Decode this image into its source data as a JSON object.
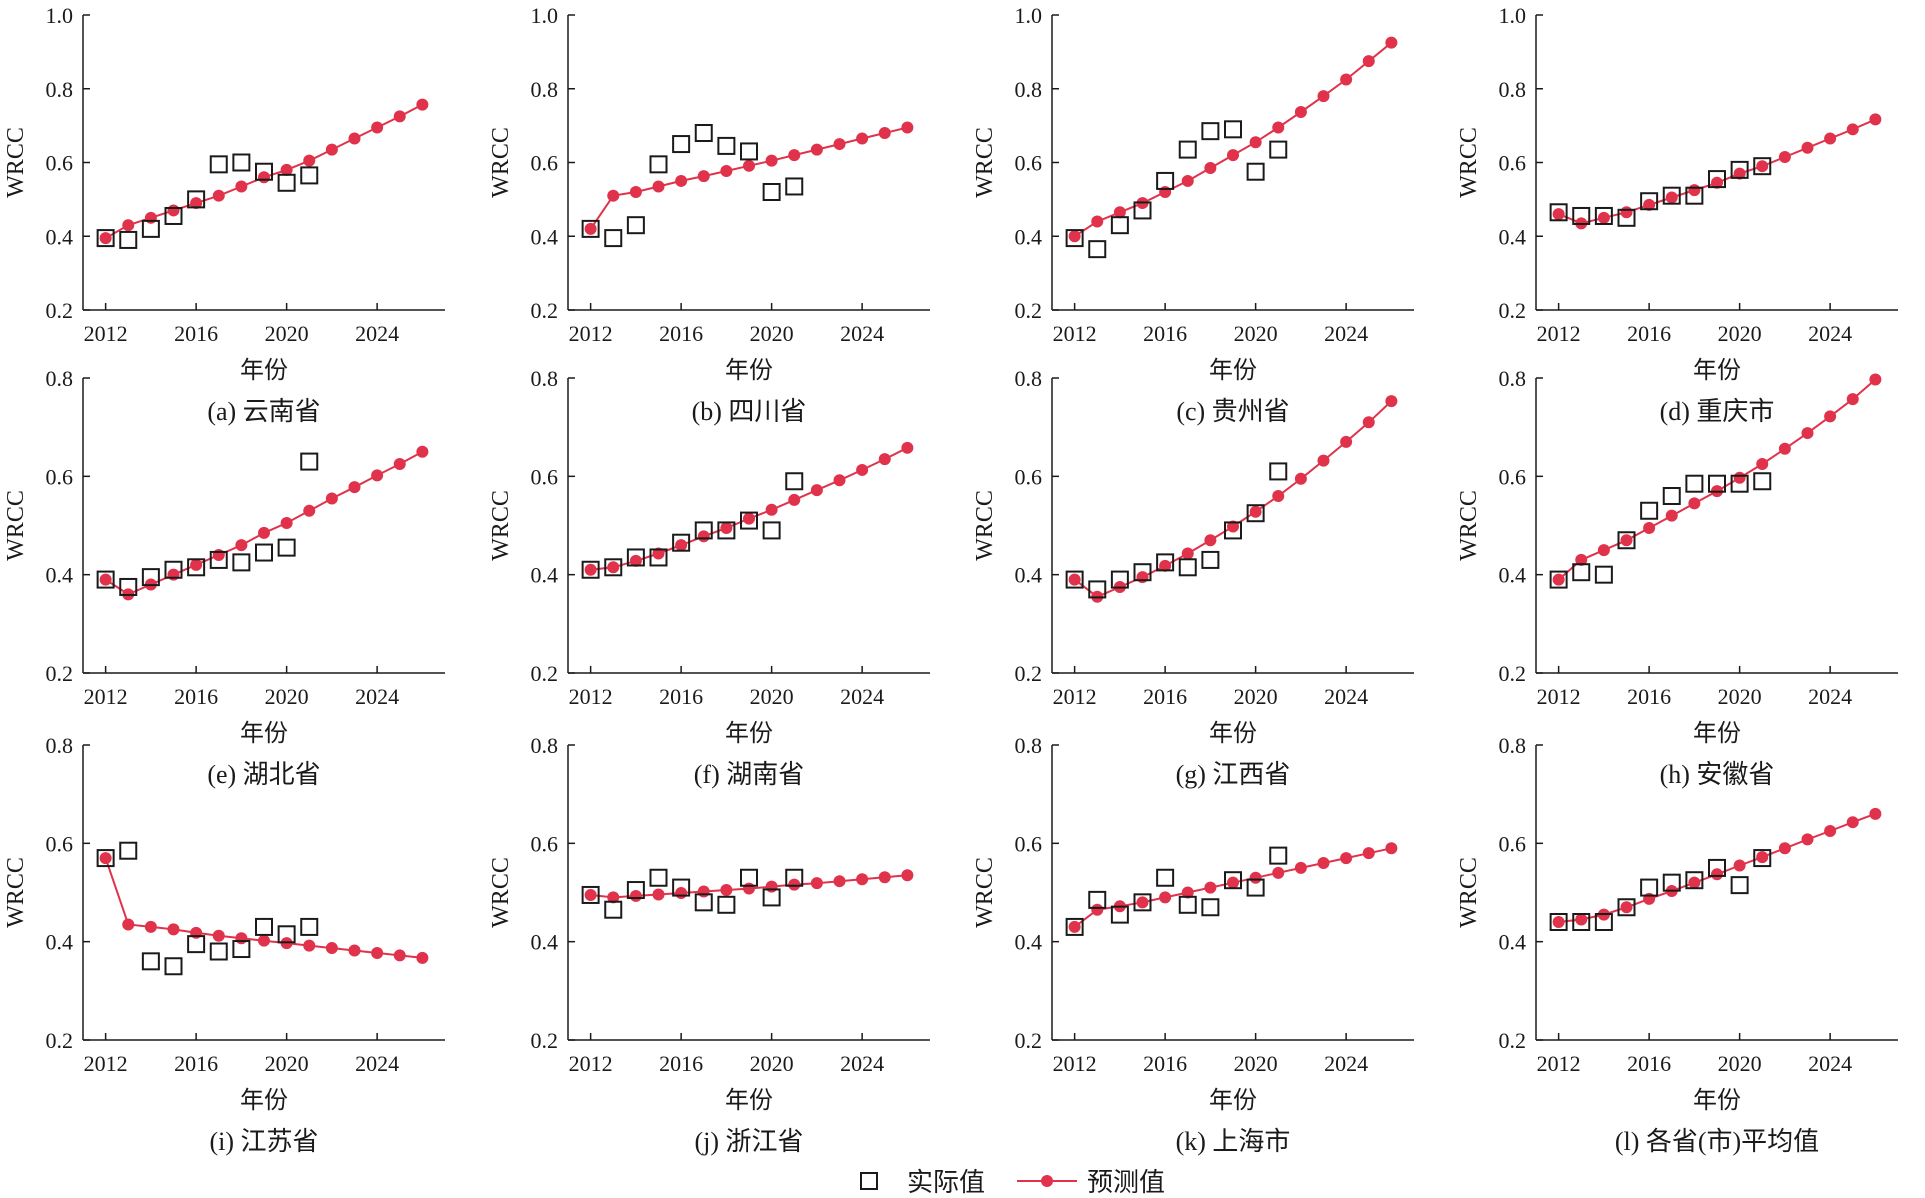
{
  "colors": {
    "predicted": "#e0324b",
    "actual_marker": "#1a1a1a",
    "axis": "#1a1a1a"
  },
  "legend": {
    "actual": "实际值",
    "predicted": "预测值"
  },
  "chart_data": [
    {
      "type": "line",
      "caption": "(a) 云南省",
      "xlabel": "年份",
      "ylabel": "WRCC",
      "xlim": [
        2011,
        2027
      ],
      "xticks": [
        2012,
        2016,
        2020,
        2024
      ],
      "ylim": [
        0.2,
        1.0
      ],
      "yticks": [
        "0.2",
        "0.4",
        "0.6",
        "0.8",
        "1.0"
      ],
      "actual": {
        "x": [
          2012,
          2013,
          2014,
          2015,
          2016,
          2017,
          2018,
          2019,
          2020,
          2021
        ],
        "y": [
          0.395,
          0.39,
          0.42,
          0.455,
          0.5,
          0.595,
          0.6,
          0.575,
          0.545,
          0.565
        ]
      },
      "predicted": {
        "x": [
          2012,
          2013,
          2014,
          2015,
          2016,
          2017,
          2018,
          2019,
          2020,
          2021,
          2022,
          2023,
          2024,
          2025,
          2026
        ],
        "y": [
          0.395,
          0.43,
          0.45,
          0.47,
          0.49,
          0.51,
          0.535,
          0.56,
          0.58,
          0.605,
          0.635,
          0.665,
          0.695,
          0.725,
          0.757
        ]
      }
    },
    {
      "type": "line",
      "caption": "(b) 四川省",
      "xlabel": "年份",
      "ylabel": "WRCC",
      "xlim": [
        2011,
        2027
      ],
      "xticks": [
        2012,
        2016,
        2020,
        2024
      ],
      "ylim": [
        0.2,
        1.0
      ],
      "yticks": [
        "0.2",
        "0.4",
        "0.6",
        "0.8",
        "1.0"
      ],
      "actual": {
        "x": [
          2012,
          2013,
          2014,
          2015,
          2016,
          2017,
          2018,
          2019,
          2020,
          2021
        ],
        "y": [
          0.42,
          0.395,
          0.43,
          0.595,
          0.65,
          0.68,
          0.645,
          0.63,
          0.52,
          0.535
        ]
      },
      "predicted": {
        "x": [
          2012,
          2013,
          2014,
          2015,
          2016,
          2017,
          2018,
          2019,
          2020,
          2021,
          2022,
          2023,
          2024,
          2025,
          2026
        ],
        "y": [
          0.42,
          0.51,
          0.52,
          0.535,
          0.55,
          0.563,
          0.577,
          0.591,
          0.605,
          0.62,
          0.635,
          0.65,
          0.665,
          0.68,
          0.695
        ]
      }
    },
    {
      "type": "line",
      "caption": "(c) 贵州省",
      "xlabel": "年份",
      "ylabel": "WRCC",
      "xlim": [
        2011,
        2027
      ],
      "xticks": [
        2012,
        2016,
        2020,
        2024
      ],
      "ylim": [
        0.2,
        1.0
      ],
      "yticks": [
        "0.2",
        "0.4",
        "0.6",
        "0.8",
        "1.0"
      ],
      "actual": {
        "x": [
          2012,
          2013,
          2014,
          2015,
          2016,
          2017,
          2018,
          2019,
          2020,
          2021
        ],
        "y": [
          0.395,
          0.365,
          0.43,
          0.47,
          0.55,
          0.635,
          0.685,
          0.69,
          0.575,
          0.635
        ]
      },
      "predicted": {
        "x": [
          2012,
          2013,
          2014,
          2015,
          2016,
          2017,
          2018,
          2019,
          2020,
          2021,
          2022,
          2023,
          2024,
          2025,
          2026
        ],
        "y": [
          0.4,
          0.44,
          0.465,
          0.49,
          0.52,
          0.55,
          0.585,
          0.62,
          0.655,
          0.695,
          0.737,
          0.78,
          0.825,
          0.875,
          0.925
        ]
      }
    },
    {
      "type": "line",
      "caption": "(d) 重庆市",
      "xlabel": "年份",
      "ylabel": "WRCC",
      "xlim": [
        2011,
        2027
      ],
      "xticks": [
        2012,
        2016,
        2020,
        2024
      ],
      "ylim": [
        0.2,
        1.0
      ],
      "yticks": [
        "0.2",
        "0.4",
        "0.6",
        "0.8",
        "1.0"
      ],
      "actual": {
        "x": [
          2012,
          2013,
          2014,
          2015,
          2016,
          2017,
          2018,
          2019,
          2020,
          2021
        ],
        "y": [
          0.465,
          0.455,
          0.455,
          0.45,
          0.495,
          0.51,
          0.51,
          0.555,
          0.58,
          0.59
        ]
      },
      "predicted": {
        "x": [
          2012,
          2013,
          2014,
          2015,
          2016,
          2017,
          2018,
          2019,
          2020,
          2021,
          2022,
          2023,
          2024,
          2025,
          2026
        ],
        "y": [
          0.46,
          0.435,
          0.45,
          0.465,
          0.485,
          0.505,
          0.525,
          0.545,
          0.57,
          0.59,
          0.615,
          0.64,
          0.665,
          0.69,
          0.717
        ]
      }
    },
    {
      "type": "line",
      "caption": "(e) 湖北省",
      "xlabel": "年份",
      "ylabel": "WRCC",
      "xlim": [
        2011,
        2027
      ],
      "xticks": [
        2012,
        2016,
        2020,
        2024
      ],
      "ylim": [
        0.2,
        0.8
      ],
      "yticks": [
        "0.2",
        "0.4",
        "0.6",
        "0.8"
      ],
      "actual": {
        "x": [
          2012,
          2013,
          2014,
          2015,
          2016,
          2017,
          2018,
          2019,
          2020,
          2021
        ],
        "y": [
          0.39,
          0.375,
          0.395,
          0.41,
          0.415,
          0.43,
          0.425,
          0.445,
          0.455,
          0.63
        ]
      },
      "predicted": {
        "x": [
          2012,
          2013,
          2014,
          2015,
          2016,
          2017,
          2018,
          2019,
          2020,
          2021,
          2022,
          2023,
          2024,
          2025,
          2026
        ],
        "y": [
          0.39,
          0.36,
          0.38,
          0.4,
          0.42,
          0.44,
          0.46,
          0.485,
          0.505,
          0.53,
          0.555,
          0.578,
          0.602,
          0.625,
          0.65
        ]
      }
    },
    {
      "type": "line",
      "caption": "(f) 湖南省",
      "xlabel": "年份",
      "ylabel": "WRCC",
      "xlim": [
        2011,
        2027
      ],
      "xticks": [
        2012,
        2016,
        2020,
        2024
      ],
      "ylim": [
        0.2,
        0.8
      ],
      "yticks": [
        "0.2",
        "0.4",
        "0.6",
        "0.8"
      ],
      "actual": {
        "x": [
          2012,
          2013,
          2014,
          2015,
          2016,
          2017,
          2018,
          2019,
          2020,
          2021
        ],
        "y": [
          0.41,
          0.415,
          0.435,
          0.435,
          0.465,
          0.49,
          0.49,
          0.51,
          0.49,
          0.59
        ]
      },
      "predicted": {
        "x": [
          2012,
          2013,
          2014,
          2015,
          2016,
          2017,
          2018,
          2019,
          2020,
          2021,
          2022,
          2023,
          2024,
          2025,
          2026
        ],
        "y": [
          0.41,
          0.415,
          0.428,
          0.443,
          0.46,
          0.478,
          0.495,
          0.514,
          0.532,
          0.552,
          0.572,
          0.592,
          0.613,
          0.635,
          0.658
        ]
      }
    },
    {
      "type": "line",
      "caption": "(g) 江西省",
      "xlabel": "年份",
      "ylabel": "WRCC",
      "xlim": [
        2011,
        2027
      ],
      "xticks": [
        2012,
        2016,
        2020,
        2024
      ],
      "ylim": [
        0.2,
        0.8
      ],
      "yticks": [
        "0.2",
        "0.4",
        "0.6",
        "0.8"
      ],
      "actual": {
        "x": [
          2012,
          2013,
          2014,
          2015,
          2016,
          2017,
          2018,
          2019,
          2020,
          2021
        ],
        "y": [
          0.39,
          0.37,
          0.39,
          0.405,
          0.425,
          0.415,
          0.43,
          0.49,
          0.525,
          0.61
        ]
      },
      "predicted": {
        "x": [
          2012,
          2013,
          2014,
          2015,
          2016,
          2017,
          2018,
          2019,
          2020,
          2021,
          2022,
          2023,
          2024,
          2025,
          2026
        ],
        "y": [
          0.39,
          0.355,
          0.375,
          0.395,
          0.418,
          0.443,
          0.47,
          0.498,
          0.528,
          0.56,
          0.595,
          0.632,
          0.67,
          0.71,
          0.753
        ]
      }
    },
    {
      "type": "line",
      "caption": "(h) 安徽省",
      "xlabel": "年份",
      "ylabel": "WRCC",
      "xlim": [
        2011,
        2027
      ],
      "xticks": [
        2012,
        2016,
        2020,
        2024
      ],
      "ylim": [
        0.2,
        0.8
      ],
      "yticks": [
        "0.2",
        "0.4",
        "0.6",
        "0.8"
      ],
      "actual": {
        "x": [
          2012,
          2013,
          2014,
          2015,
          2016,
          2017,
          2018,
          2019,
          2020,
          2021
        ],
        "y": [
          0.39,
          0.405,
          0.4,
          0.47,
          0.53,
          0.56,
          0.585,
          0.585,
          0.585,
          0.59
        ]
      },
      "predicted": {
        "x": [
          2012,
          2013,
          2014,
          2015,
          2016,
          2017,
          2018,
          2019,
          2020,
          2021,
          2022,
          2023,
          2024,
          2025,
          2026
        ],
        "y": [
          0.39,
          0.43,
          0.45,
          0.47,
          0.495,
          0.52,
          0.545,
          0.57,
          0.597,
          0.625,
          0.656,
          0.688,
          0.722,
          0.757,
          0.797
        ]
      }
    },
    {
      "type": "line",
      "caption": "(i) 江苏省",
      "xlabel": "年份",
      "ylabel": "WRCC",
      "xlim": [
        2011,
        2027
      ],
      "xticks": [
        2012,
        2016,
        2020,
        2024
      ],
      "ylim": [
        0.2,
        0.8
      ],
      "yticks": [
        "0.2",
        "0.4",
        "0.6",
        "0.8"
      ],
      "actual": {
        "x": [
          2012,
          2013,
          2014,
          2015,
          2016,
          2017,
          2018,
          2019,
          2020,
          2021
        ],
        "y": [
          0.57,
          0.585,
          0.36,
          0.35,
          0.395,
          0.38,
          0.385,
          0.43,
          0.415,
          0.43
        ]
      },
      "predicted": {
        "x": [
          2012,
          2013,
          2014,
          2015,
          2016,
          2017,
          2018,
          2019,
          2020,
          2021,
          2022,
          2023,
          2024,
          2025,
          2026
        ],
        "y": [
          0.57,
          0.435,
          0.43,
          0.425,
          0.418,
          0.412,
          0.407,
          0.402,
          0.397,
          0.392,
          0.387,
          0.382,
          0.377,
          0.372,
          0.367
        ]
      }
    },
    {
      "type": "line",
      "caption": "(j) 浙江省",
      "xlabel": "年份",
      "ylabel": "WRCC",
      "xlim": [
        2011,
        2027
      ],
      "xticks": [
        2012,
        2016,
        2020,
        2024
      ],
      "ylim": [
        0.2,
        0.8
      ],
      "yticks": [
        "0.2",
        "0.4",
        "0.6",
        "0.8"
      ],
      "actual": {
        "x": [
          2012,
          2013,
          2014,
          2015,
          2016,
          2017,
          2018,
          2019,
          2020,
          2021
        ],
        "y": [
          0.495,
          0.465,
          0.505,
          0.53,
          0.51,
          0.48,
          0.475,
          0.53,
          0.49,
          0.53
        ]
      },
      "predicted": {
        "x": [
          2012,
          2013,
          2014,
          2015,
          2016,
          2017,
          2018,
          2019,
          2020,
          2021,
          2022,
          2023,
          2024,
          2025,
          2026
        ],
        "y": [
          0.495,
          0.49,
          0.493,
          0.496,
          0.499,
          0.502,
          0.505,
          0.508,
          0.512,
          0.516,
          0.519,
          0.523,
          0.527,
          0.531,
          0.535
        ]
      }
    },
    {
      "type": "line",
      "caption": "(k) 上海市",
      "xlabel": "年份",
      "ylabel": "WRCC",
      "xlim": [
        2011,
        2027
      ],
      "xticks": [
        2012,
        2016,
        2020,
        2024
      ],
      "ylim": [
        0.2,
        0.8
      ],
      "yticks": [
        "0.2",
        "0.4",
        "0.6",
        "0.8"
      ],
      "actual": {
        "x": [
          2012,
          2013,
          2014,
          2015,
          2016,
          2017,
          2018,
          2019,
          2020,
          2021
        ],
        "y": [
          0.43,
          0.485,
          0.455,
          0.48,
          0.53,
          0.475,
          0.47,
          0.525,
          0.51,
          0.575
        ]
      },
      "predicted": {
        "x": [
          2012,
          2013,
          2014,
          2015,
          2016,
          2017,
          2018,
          2019,
          2020,
          2021,
          2022,
          2023,
          2024,
          2025,
          2026
        ],
        "y": [
          0.43,
          0.465,
          0.472,
          0.48,
          0.49,
          0.5,
          0.51,
          0.52,
          0.53,
          0.54,
          0.55,
          0.56,
          0.57,
          0.58,
          0.59
        ]
      }
    },
    {
      "type": "line",
      "caption": "(l) 各省(市)平均值",
      "xlabel": "年份",
      "ylabel": "WRCC",
      "xlim": [
        2011,
        2027
      ],
      "xticks": [
        2012,
        2016,
        2020,
        2024
      ],
      "ylim": [
        0.2,
        0.8
      ],
      "yticks": [
        "0.2",
        "0.4",
        "0.6",
        "0.8"
      ],
      "actual": {
        "x": [
          2012,
          2013,
          2014,
          2015,
          2016,
          2017,
          2018,
          2019,
          2020,
          2021
        ],
        "y": [
          0.44,
          0.44,
          0.44,
          0.47,
          0.51,
          0.52,
          0.525,
          0.55,
          0.515,
          0.57
        ]
      },
      "predicted": {
        "x": [
          2012,
          2013,
          2014,
          2015,
          2016,
          2017,
          2018,
          2019,
          2020,
          2021,
          2022,
          2023,
          2024,
          2025,
          2026
        ],
        "y": [
          0.44,
          0.445,
          0.455,
          0.47,
          0.487,
          0.503,
          0.52,
          0.537,
          0.555,
          0.572,
          0.59,
          0.608,
          0.625,
          0.643,
          0.66
        ]
      }
    }
  ]
}
